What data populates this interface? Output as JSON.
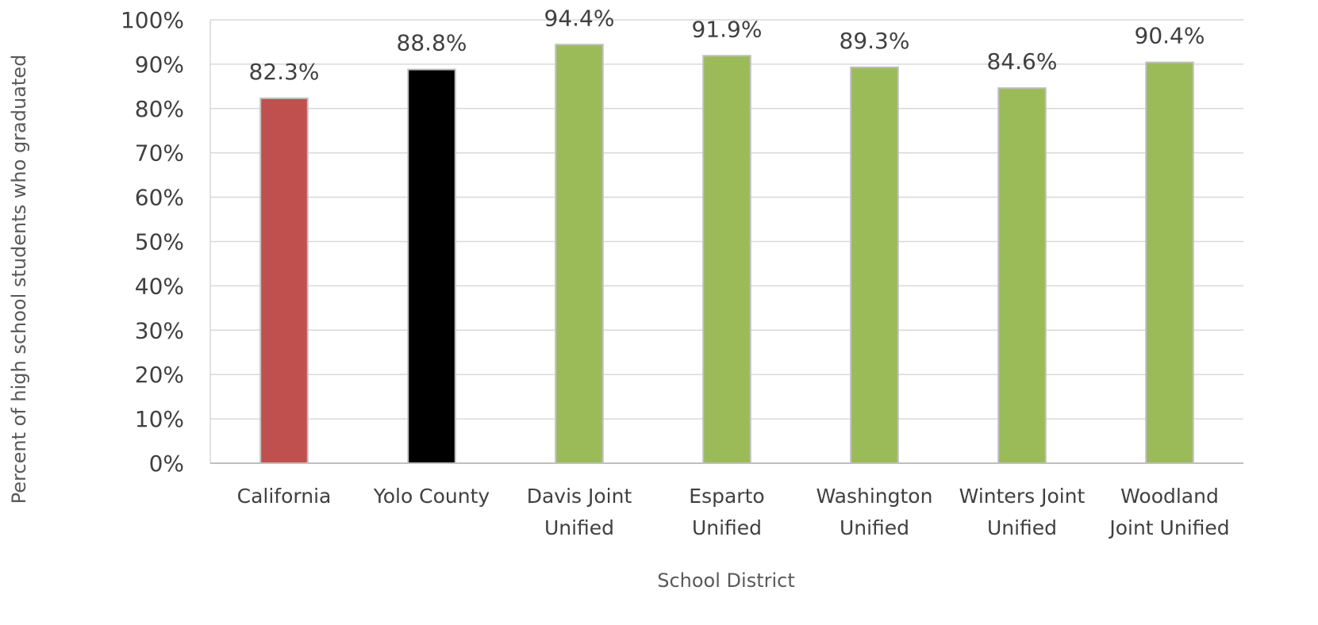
{
  "chart_data": {
    "type": "bar",
    "title": "",
    "xlabel": "School District",
    "ylabel": "Percent of high school students who graduated",
    "ylim": [
      0,
      100
    ],
    "y_ticks": [
      "0%",
      "10%",
      "20%",
      "30%",
      "40%",
      "50%",
      "60%",
      "70%",
      "80%",
      "90%",
      "100%"
    ],
    "categories": [
      [
        "California"
      ],
      [
        "Yolo County"
      ],
      [
        "Davis Joint",
        "Unified"
      ],
      [
        "Esparto",
        "Unified"
      ],
      [
        "Washington",
        "Unified"
      ],
      [
        "Winters Joint",
        "Unified"
      ],
      [
        "Woodland",
        "Joint Unified"
      ]
    ],
    "values": [
      82.3,
      88.8,
      94.4,
      91.9,
      89.3,
      84.6,
      90.4
    ],
    "data_labels": [
      "82.3%",
      "88.8%",
      "94.4%",
      "91.9%",
      "89.3%",
      "84.6%",
      "90.4%"
    ],
    "bar_colors": [
      "#c0504d",
      "#000000",
      "#9bbb59",
      "#9bbb59",
      "#9bbb59",
      "#9bbb59",
      "#9bbb59"
    ],
    "bar_border_color": "#bfbfbf",
    "grid": true,
    "grid_color": "#d9d9d9",
    "legend": "none"
  }
}
